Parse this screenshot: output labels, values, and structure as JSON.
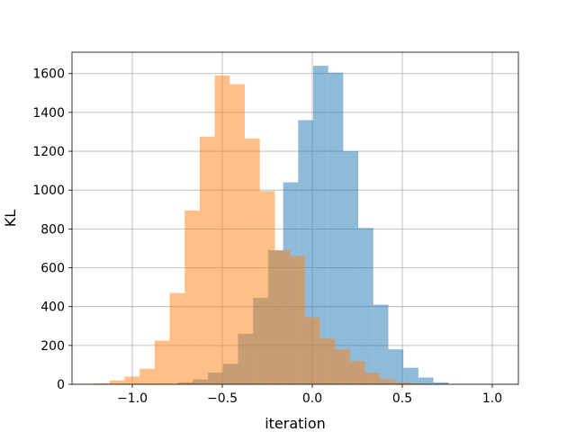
{
  "chart_data": {
    "type": "histogram",
    "title": "",
    "xlabel": "iteration",
    "ylabel": "KL",
    "xlim": [
      -1.335,
      1.145
    ],
    "ylim": [
      0,
      1710
    ],
    "grid": true,
    "legend": "none",
    "x_ticks": [
      -1.0,
      -0.5,
      0.0,
      0.5,
      1.0
    ],
    "x_tick_labels": [
      "−1.0",
      "−0.5",
      "0.0",
      "0.5",
      "1.0"
    ],
    "y_ticks": [
      0,
      200,
      400,
      600,
      800,
      1000,
      1200,
      1400,
      1600
    ],
    "y_tick_labels": [
      "0",
      "200",
      "400",
      "600",
      "800",
      "1000",
      "1200",
      "1400",
      "1600"
    ],
    "series": [
      {
        "color": "#1f77b4",
        "alpha": 0.5,
        "bin_start": -0.83,
        "bin_width": 0.0835,
        "counts": [
          2,
          10,
          25,
          60,
          105,
          260,
          445,
          690,
          1040,
          1360,
          1640,
          1605,
          1200,
          805,
          410,
          180,
          85,
          35,
          10,
          2
        ]
      },
      {
        "color": "#ff7f0e",
        "alpha": 0.5,
        "bin_start": -1.21,
        "bin_width": 0.0835,
        "counts": [
          5,
          20,
          40,
          80,
          225,
          470,
          895,
          1275,
          1590,
          1545,
          1265,
          995,
          690,
          660,
          345,
          235,
          180,
          120,
          60,
          25,
          10,
          5,
          2
        ]
      }
    ]
  }
}
